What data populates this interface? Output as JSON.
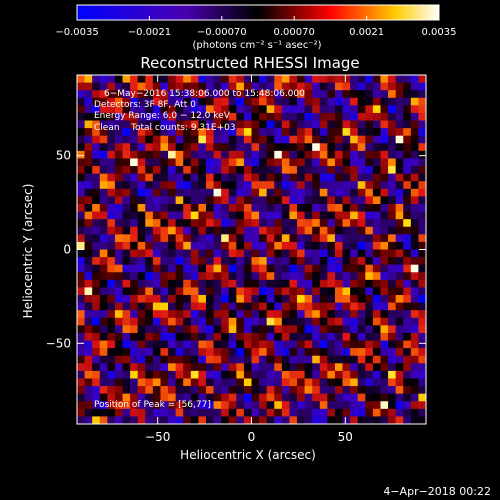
{
  "chart_data": {
    "type": "heatmap",
    "title": "Reconstructed RHESSI Image",
    "xlabel": "Heliocentric X (arcsec)",
    "ylabel": "Heliocentric Y (arcsec)",
    "xlim": [
      -93,
      93
    ],
    "ylim": [
      -93,
      93
    ],
    "x_ticks": [
      -50,
      0,
      50
    ],
    "y_ticks": [
      -50,
      0,
      50
    ],
    "x_tick_labels": [
      "−50",
      "0",
      "50"
    ],
    "y_tick_labels": [
      "−50",
      "0",
      "50"
    ],
    "colorbar": {
      "range": [
        -0.0035,
        0.0035
      ],
      "ticks": [
        "−0.0035",
        "−0.0021",
        "−0.00070",
        "0.00070",
        "0.0021",
        "0.0035"
      ],
      "units_label": "(photons cm⁻² s⁻¹ asec⁻²)",
      "colors": [
        "#0000ff",
        "#000000",
        "#ff0000",
        "#ffff00",
        "#ffffff"
      ]
    },
    "annotations": {
      "time": "6−May−2016 15:38:06.000 to 15:48:06.000",
      "detectors": "Detectors: 3F 8F, Att 0",
      "energy": "Energy Range: 6.0 − 12.0 keV",
      "clean": "Clean    Total counts: 9.31E+03",
      "peak": "Position of Peak = [56,77]"
    },
    "peak_position": [
      56,
      77
    ]
  },
  "footer": {
    "timestamp": "4−Apr−2018 00:22"
  }
}
